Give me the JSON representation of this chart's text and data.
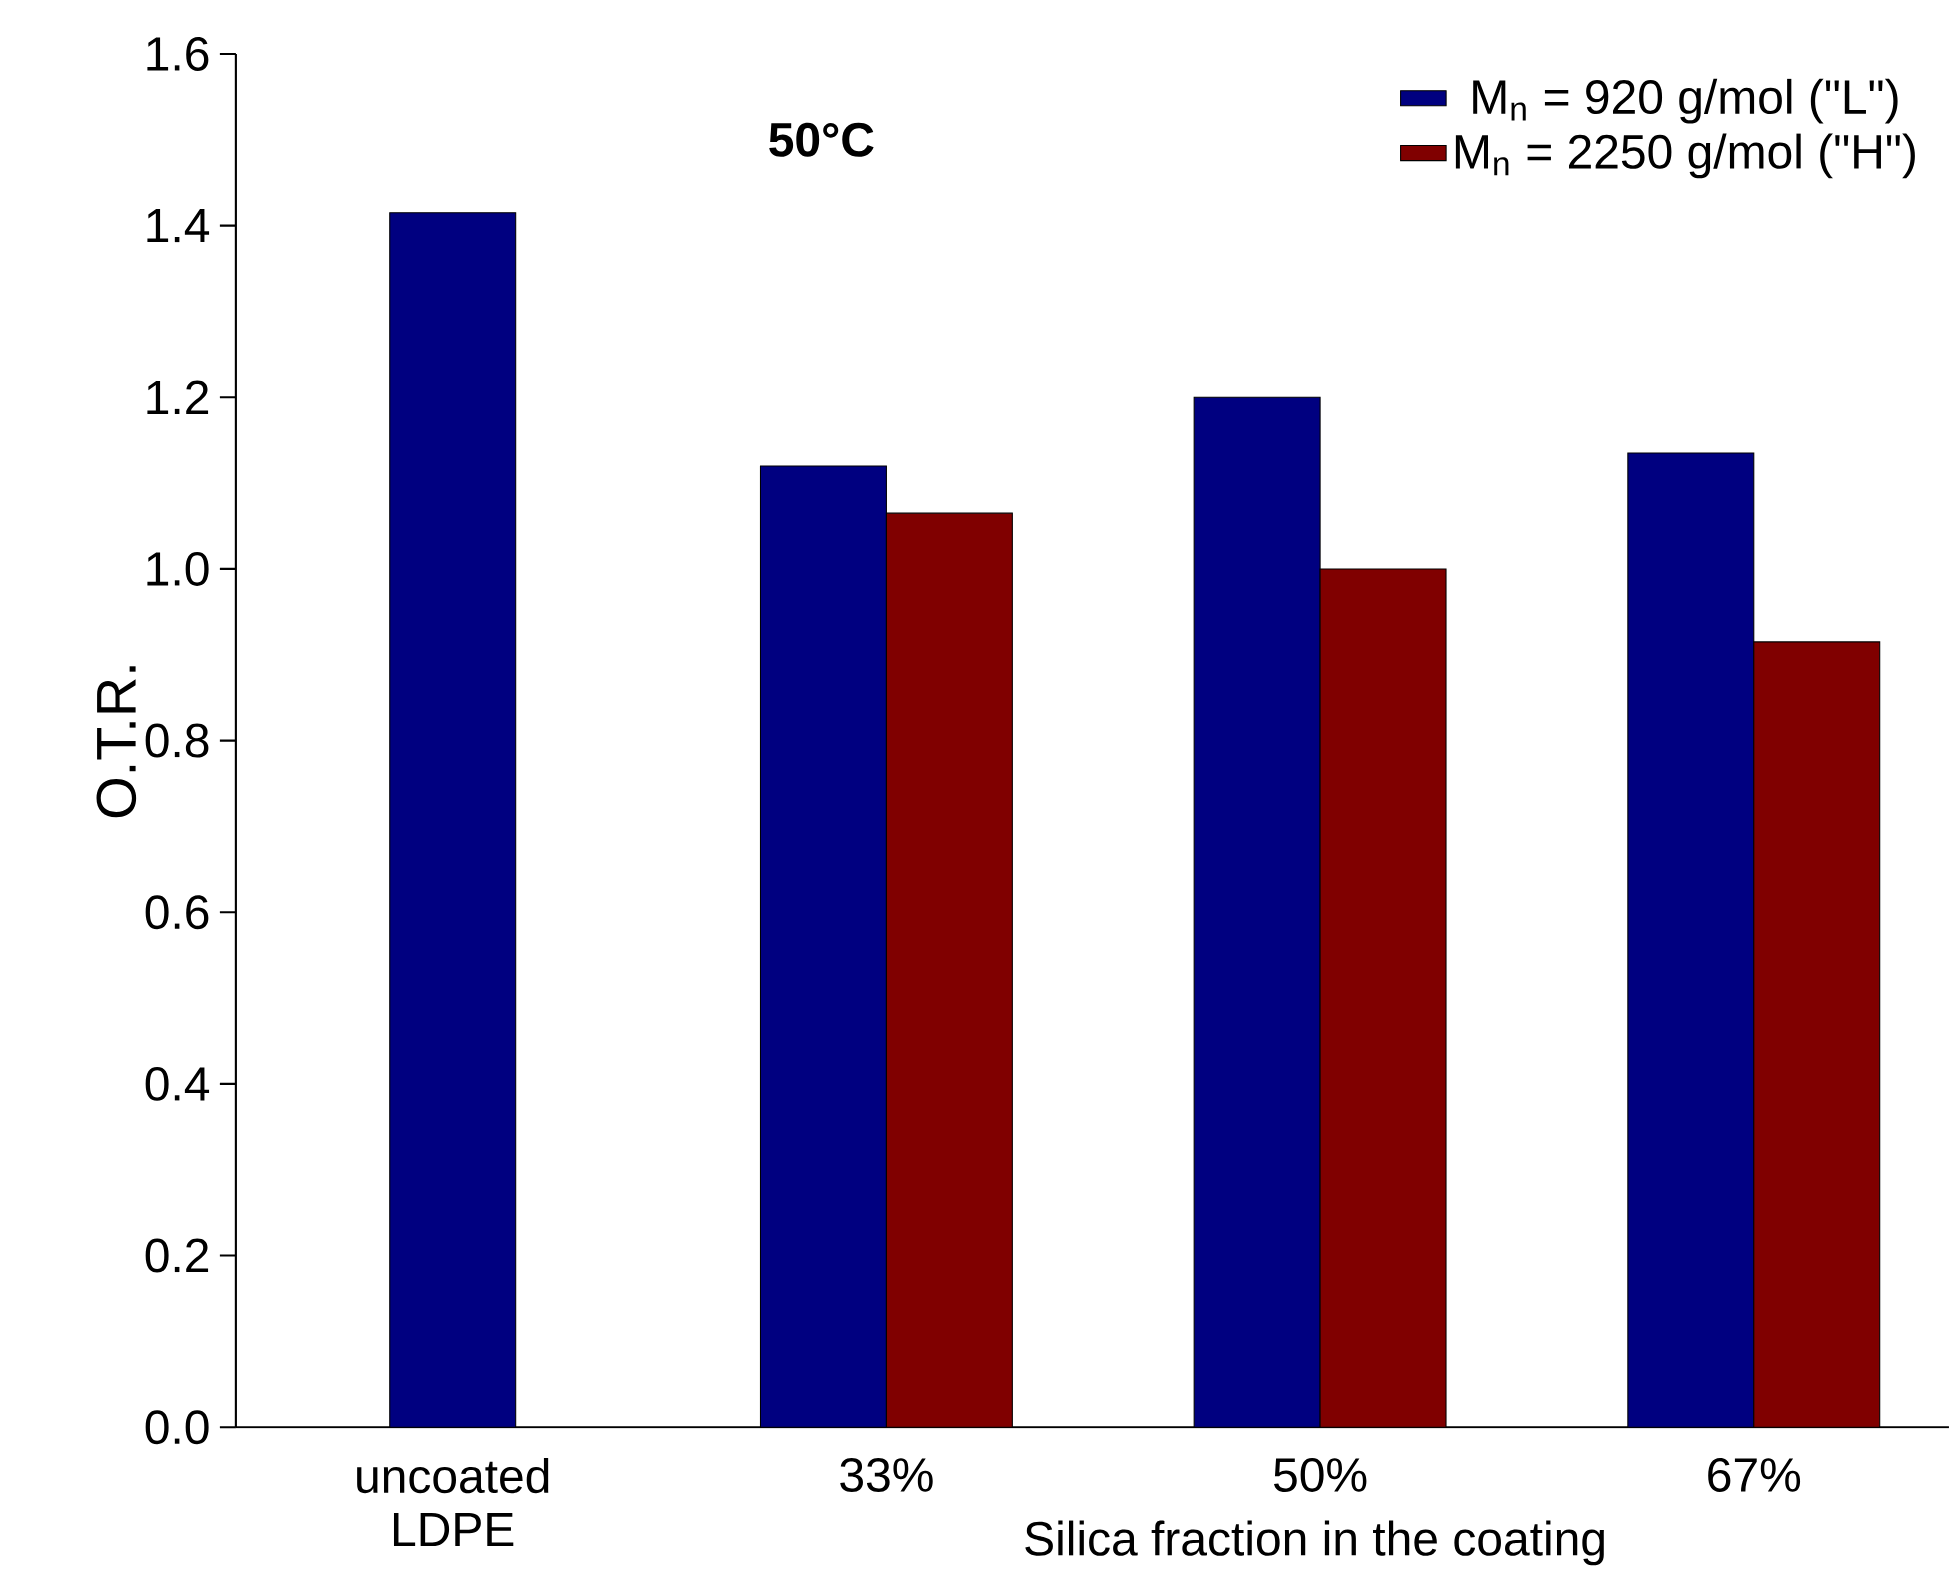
{
  "chart_data": {
    "type": "bar",
    "categories": [
      "uncoated LDPE",
      "33%",
      "50%",
      "67%"
    ],
    "series": [
      {
        "name": "M$_{n}$ =   920 g/mol (\"L\")",
        "color": "#000080",
        "values": [
          1.415,
          1.12,
          1.2,
          1.135
        ]
      },
      {
        "name": "M$_{n}$ = 2250 g/mol (\"H\")",
        "color": "#800000",
        "values": [
          null,
          1.065,
          1.0,
          0.915
        ]
      }
    ],
    "xlabel": "Silica fraction in the coating",
    "ylabel": "O.T.R.",
    "annotations": [
      "**50°C**"
    ],
    "ylim": [
      0,
      1.6
    ],
    "yticks": [
      {
        "value": 0,
        "label": "0.0"
      },
      0.2,
      0.4,
      0.6,
      0.8,
      {
        "value": 1.0,
        "label": "1.0"
      },
      1.2,
      1.4,
      1.6
    ],
    "legend": "top right",
    "grid": false
  }
}
